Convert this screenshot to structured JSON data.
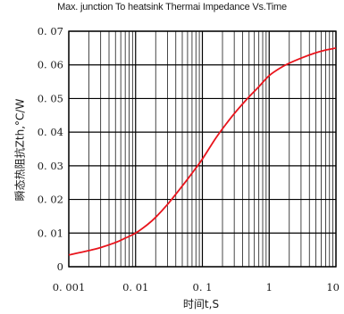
{
  "chart_data": {
    "type": "line",
    "title": "Max. junction To heatsink Thermai Impedance Vs.Time",
    "xlabel": "时间t,S",
    "ylabel": "瞬态热阻抗Zth,°C/W",
    "x_scale": "log",
    "xlim": [
      0.001,
      10
    ],
    "ylim": [
      0,
      0.07
    ],
    "x_ticks": [
      0.001,
      0.01,
      0.1,
      1,
      10
    ],
    "x_tick_labels": [
      "0. 001",
      "0. 01",
      "0. 1",
      "1",
      "10"
    ],
    "y_ticks": [
      0,
      0.01,
      0.02,
      0.03,
      0.04,
      0.05,
      0.06,
      0.07
    ],
    "y_tick_labels": [
      "0",
      "0. 01",
      "0. 02",
      "0. 03",
      "0. 04",
      "0. 05",
      "0. 06",
      "0. 07"
    ],
    "grid": true,
    "line_color": "#e8141c",
    "series": [
      {
        "x": [
          0.001,
          0.002,
          0.003,
          0.005,
          0.007,
          0.01,
          0.015,
          0.02,
          0.03,
          0.05,
          0.07,
          0.1,
          0.15,
          0.2,
          0.3,
          0.5,
          0.7,
          1,
          1.5,
          2,
          3,
          5,
          7,
          10
        ],
        "values": [
          0.0035,
          0.0048,
          0.0057,
          0.0072,
          0.0085,
          0.01,
          0.0125,
          0.0147,
          0.0185,
          0.024,
          0.0278,
          0.032,
          0.0375,
          0.041,
          0.0455,
          0.0505,
          0.0535,
          0.0568,
          0.0592,
          0.0605,
          0.062,
          0.0636,
          0.0644,
          0.065
        ]
      }
    ]
  }
}
